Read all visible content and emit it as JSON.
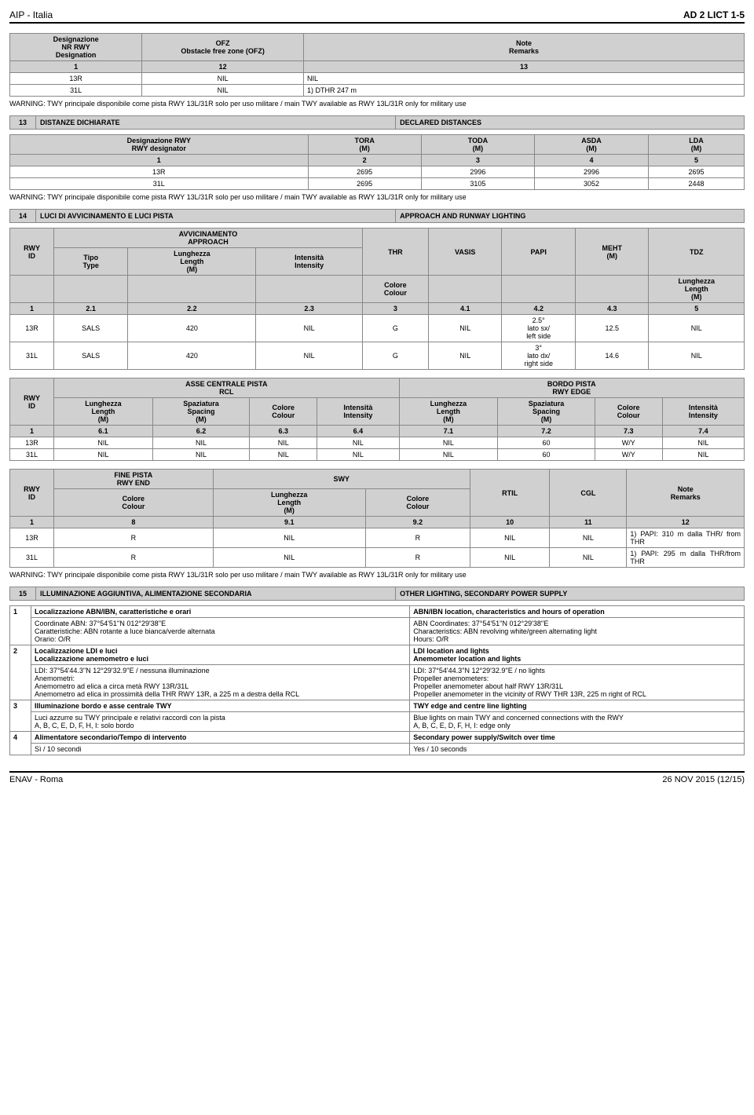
{
  "header": {
    "left": "AIP - Italia",
    "right": "AD 2 LICT 1-5"
  },
  "footer": {
    "left": "ENAV - Roma",
    "right": "26 NOV 2015 (12/15)"
  },
  "ofz": {
    "headers": {
      "c1a": "Designazione",
      "c1b": "NR RWY",
      "c1c": "Designation",
      "c2a": "OFZ",
      "c2b": "Obstacle free zone (OFZ)",
      "c3a": "Note",
      "c3b": "Remarks"
    },
    "sub": {
      "a": "1",
      "b": "12",
      "c": "13"
    },
    "rows": [
      {
        "a": "13R",
        "b": "NIL",
        "c": "NIL"
      },
      {
        "a": "31L",
        "b": "NIL",
        "c": "1) DTHR 247 m"
      }
    ]
  },
  "warning": "WARNING: TWY principale disponibile come pista RWY 13L/31R solo per uso militare / main TWY available as RWY 13L/31R only for military use",
  "sec13": {
    "num": "13",
    "it": "DISTANZE DICHIARATE",
    "en": "DECLARED DISTANCES"
  },
  "dist": {
    "hdr": {
      "c1a": "Designazione RWY",
      "c1b": "RWY designator",
      "c2a": "TORA",
      "c2b": "(M)",
      "c3a": "TODA",
      "c3b": "(M)",
      "c4a": "ASDA",
      "c4b": "(M)",
      "c5a": "LDA",
      "c5b": "(M)"
    },
    "sub": {
      "a": "1",
      "b": "2",
      "c": "3",
      "d": "4",
      "e": "5"
    },
    "rows": [
      {
        "a": "13R",
        "b": "2695",
        "c": "2996",
        "d": "2996",
        "e": "2695"
      },
      {
        "a": "31L",
        "b": "2695",
        "c": "3105",
        "d": "3052",
        "e": "2448"
      }
    ]
  },
  "sec14": {
    "num": "14",
    "it": "LUCI DI AVVICINAMENTO E LUCI PISTA",
    "en": "APPROACH AND RUNWAY LIGHTING"
  },
  "appr": {
    "h": {
      "rwy": "RWY",
      "id": "ID",
      "avv": "AVVICINAMENTO",
      "app": "APPROACH",
      "thr": "THR",
      "vasis": "VASIS",
      "papi": "PAPI",
      "meht": "MEHT",
      "mehtm": "(M)",
      "tdz": "TDZ",
      "tipo": "Tipo",
      "type": "Type",
      "lung": "Lunghezza",
      "leng": "Length",
      "m": "(M)",
      "int": "Intensità",
      "inten": "Intensity",
      "col": "Colore",
      "colour": "Colour"
    },
    "sub": {
      "a": "1",
      "b": "2.1",
      "c": "2.2",
      "d": "2.3",
      "e": "3",
      "f": "4.1",
      "g": "4.2",
      "h": "4.3",
      "i": "5"
    },
    "rows": [
      {
        "a": "13R",
        "b": "SALS",
        "c": "420",
        "d": "NIL",
        "e": "G",
        "f": "NIL",
        "g": "2.5°\nlato sx/\nleft side",
        "h": "12.5",
        "i": "NIL"
      },
      {
        "a": "31L",
        "b": "SALS",
        "c": "420",
        "d": "NIL",
        "e": "G",
        "f": "NIL",
        "g": "3°\nlato dx/\nright side",
        "h": "14.6",
        "i": "NIL"
      }
    ]
  },
  "rcl": {
    "h": {
      "rwy": "RWY",
      "id": "ID",
      "asse": "ASSE CENTRALE PISTA",
      "rcl": "RCL",
      "bordo": "BORDO PISTA",
      "edge": "RWY EDGE",
      "lung": "Lunghezza",
      "leng": "Length",
      "m": "(M)",
      "spaz": "Spaziatura",
      "spac": "Spacing",
      "col": "Colore",
      "colour": "Colour",
      "int": "Intensità",
      "inten": "Intensity"
    },
    "sub": {
      "a": "1",
      "b": "6.1",
      "c": "6.2",
      "d": "6.3",
      "e": "6.4",
      "f": "7.1",
      "g": "7.2",
      "h": "7.3",
      "i": "7.4"
    },
    "rows": [
      {
        "a": "13R",
        "b": "NIL",
        "c": "NIL",
        "d": "NIL",
        "e": "NIL",
        "f": "NIL",
        "g": "60",
        "h": "W/Y",
        "i": "NIL"
      },
      {
        "a": "31L",
        "b": "NIL",
        "c": "NIL",
        "d": "NIL",
        "e": "NIL",
        "f": "NIL",
        "g": "60",
        "h": "W/Y",
        "i": "NIL"
      }
    ]
  },
  "end": {
    "h": {
      "rwy": "RWY",
      "id": "ID",
      "fine": "FINE PISTA",
      "rend": "RWY END",
      "swy": "SWY",
      "rtil": "RTIL",
      "cgl": "CGL",
      "note": "Note",
      "rem": "Remarks",
      "col": "Colore",
      "colour": "Colour",
      "lung": "Lunghezza",
      "leng": "Length",
      "m": "(M)"
    },
    "sub": {
      "a": "1",
      "b": "8",
      "c": "9.1",
      "d": "9.2",
      "e": "10",
      "f": "11",
      "g": "12"
    },
    "rows": [
      {
        "a": "13R",
        "b": "R",
        "c": "NIL",
        "d": "R",
        "e": "NIL",
        "f": "NIL",
        "g": "1) PAPI: 310 m dalla THR/ from THR"
      },
      {
        "a": "31L",
        "b": "R",
        "c": "NIL",
        "d": "R",
        "e": "NIL",
        "f": "NIL",
        "g": "1) PAPI: 295 m dalla THR/from THR"
      }
    ]
  },
  "sec15": {
    "num": "15",
    "it": "ILLUMINAZIONE AGGIUNTIVA, ALIMENTAZIONE SECONDARIA",
    "en": "OTHER LIGHTING, SECONDARY POWER SUPPLY"
  },
  "notes": [
    {
      "n": "1",
      "lh": "Localizzazione ABN/IBN, caratteristiche e orari",
      "rh": "ABN/IBN location, characteristics and hours of operation",
      "l": "Coordinate ABN: 37°54'51''N  012°29'38''E\nCaratteristiche: ABN rotante a luce bianca/verde alternata\nOrario: O/R",
      "r": "ABN Coordinates: 37°54'51''N  012°29'38''E\nCharacteristics: ABN revolving white/green alternating light\nHours: O/R"
    },
    {
      "n": "2",
      "lh": "Localizzazione LDI e luci\nLocalizzazione anemometro e luci",
      "rh": "LDI location and lights\nAnemometer location and lights",
      "l": "LDI: 37°54'44.3''N 12°29'32.9''E / nessuna illuminazione\nAnemometri:\nAnemometro ad elica a circa metà RWY 13R/31L\nAnemometro ad elica in prossimità della THR RWY 13R, a 225 m a destra della RCL",
      "r": "LDI: 37°54'44.3''N 12°29'32.9''E / no lights\nPropeller anemometers:\nPropeller anemometer about half RWY 13R/31L\nPropeller anemometer in the vicinity of RWY THR 13R, 225 m right of RCL"
    },
    {
      "n": "3",
      "lh": "Illuminazione bordo e asse centrale TWY",
      "rh": "TWY edge and centre line lighting",
      "l": "Luci azzurre su TWY principale e relativi raccordi con la pista\nA, B, C, E, D, F, H, I: solo bordo",
      "r": "Blue lights on main TWY and concerned connections with the RWY\nA, B, C, E, D, F, H, I: edge only"
    },
    {
      "n": "4",
      "lh": "Alimentatore secondario/Tempo di intervento",
      "rh": "Secondary power supply/Switch over time",
      "l": "Sì / 10 secondi",
      "r": "Yes / 10 seconds"
    }
  ]
}
